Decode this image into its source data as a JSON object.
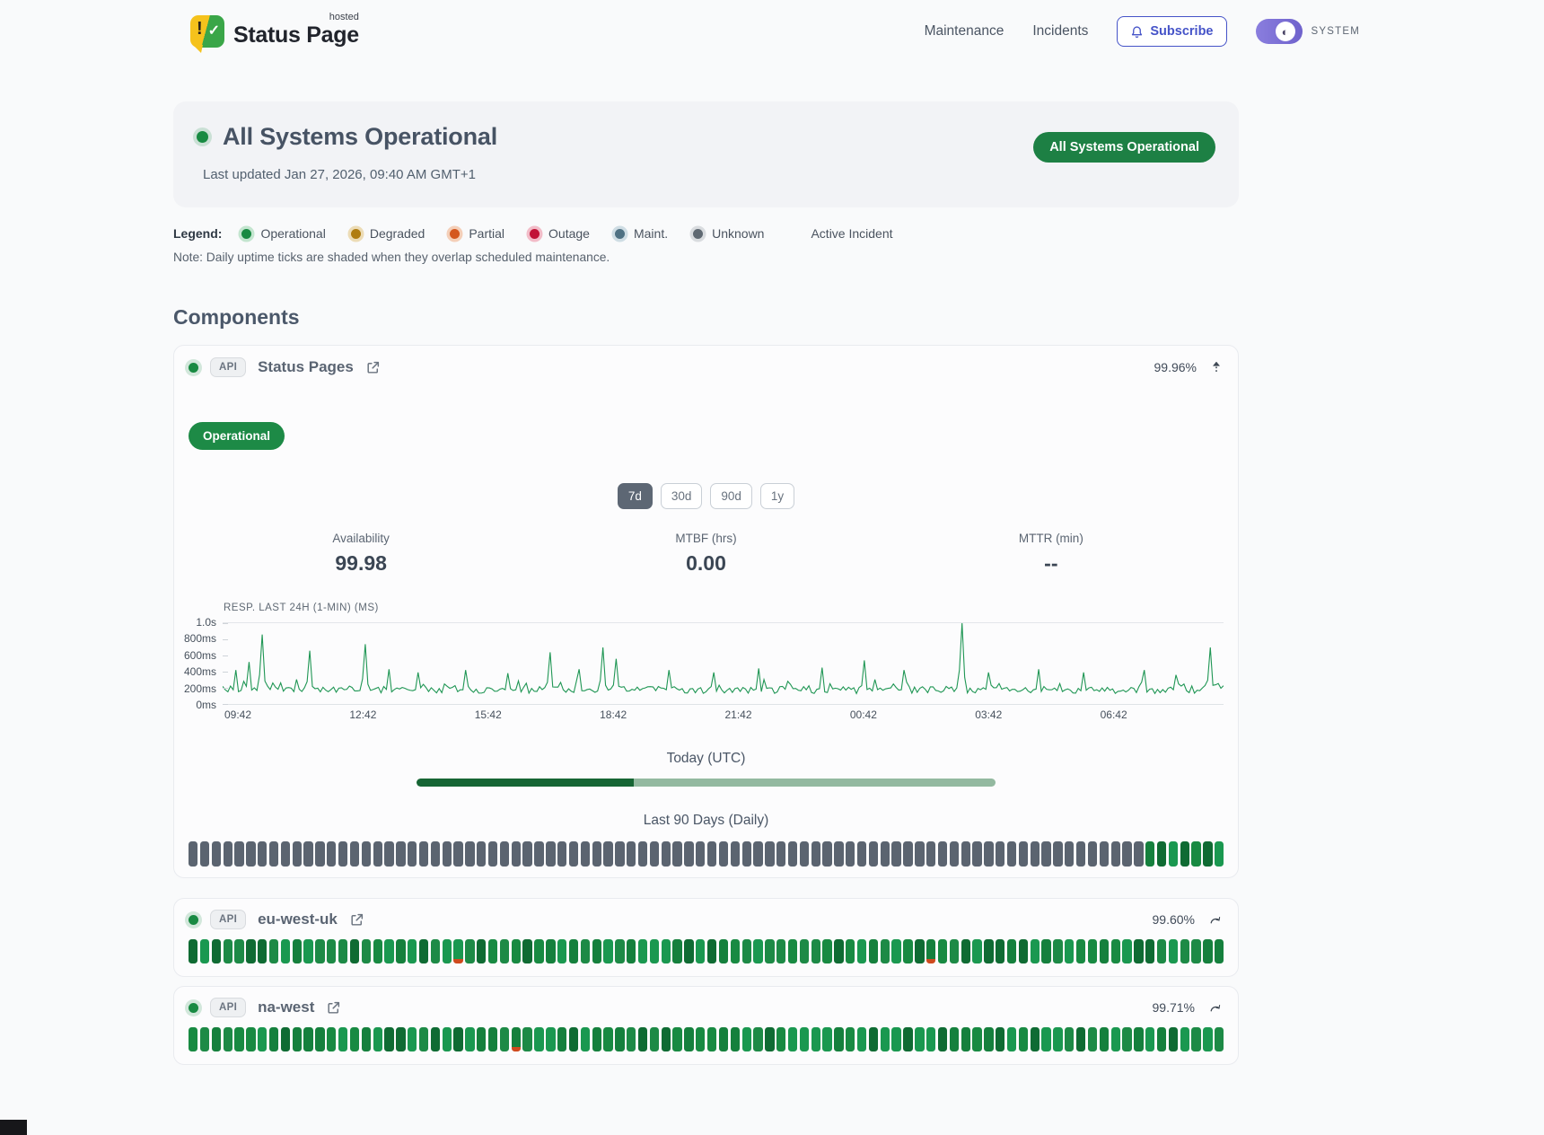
{
  "brand": {
    "title": "Status Page",
    "superscript": "hosted"
  },
  "nav": {
    "items": [
      "Maintenance",
      "Incidents"
    ],
    "subscribe_label": "Subscribe",
    "theme_label": "SYSTEM"
  },
  "hero": {
    "title": "All Systems Operational",
    "updated": "Last updated Jan 27, 2026, 09:40 AM GMT+1",
    "badge": "All Systems Operational"
  },
  "legend": {
    "label": "Legend:",
    "items": [
      {
        "label": "Operational",
        "color": "#188a42",
        "ring": "#c3e5cf"
      },
      {
        "label": "Degraded",
        "color": "#b07d10",
        "ring": "#ecdcb6"
      },
      {
        "label": "Partial",
        "color": "#d4571e",
        "ring": "#f4cfb8"
      },
      {
        "label": "Outage",
        "color": "#c11236",
        "ring": "#f2bcc8"
      },
      {
        "label": "Maint.",
        "color": "#4f7183",
        "ring": "#cfdde4"
      },
      {
        "label": "Unknown",
        "color": "#5f6972",
        "ring": "#d9dcdf"
      }
    ],
    "active_incident_label": "Active Incident",
    "note": "Note: Daily uptime ticks are shaded when they overlap scheduled maintenance."
  },
  "components_heading": "Components",
  "components": [
    {
      "badge": "API",
      "name": "Status Pages",
      "uptime": "99.96%",
      "status_label": "Operational",
      "ranges": [
        {
          "label": "7d",
          "active": true
        },
        {
          "label": "30d",
          "active": false
        },
        {
          "label": "90d",
          "active": false
        },
        {
          "label": "1y",
          "active": false
        }
      ],
      "stats": [
        {
          "label": "Availability",
          "value": "99.98"
        },
        {
          "label": "MTBF (hrs)",
          "value": "0.00"
        },
        {
          "label": "MTTR (min)",
          "value": "--"
        }
      ],
      "today_label": "Today (UTC)",
      "today_progress_pct": 37.6,
      "history_label": "Last 90 Days (Daily)",
      "history": {
        "days": 90,
        "runs": [
          [
            "unknown",
            83
          ],
          [
            "up",
            7
          ]
        ],
        "partials": []
      }
    },
    {
      "badge": "API",
      "name": "eu-west-uk",
      "uptime": "99.60%",
      "history": {
        "days": 90,
        "runs": [
          [
            "up",
            90
          ]
        ],
        "partials": [
          23,
          64
        ]
      }
    },
    {
      "badge": "API",
      "name": "na-west",
      "uptime": "99.71%",
      "history": {
        "days": 90,
        "runs": [
          [
            "up",
            90
          ]
        ],
        "partials": [
          28
        ]
      }
    }
  ],
  "chart_data": {
    "type": "line",
    "title": "RESP. LAST 24H (1-MIN) (MS)",
    "y_ticks": [
      "1.0s",
      "800ms",
      "600ms",
      "400ms",
      "200ms",
      "0ms"
    ],
    "x_ticks": [
      "09:42",
      "12:42",
      "15:42",
      "18:42",
      "21:42",
      "00:42",
      "03:42",
      "06:42"
    ],
    "ylim": [
      0,
      1000
    ],
    "grid": "top-and-bottom-only",
    "legend_position": "none",
    "baseline_ms": 170,
    "noise_ms": 90,
    "seed": 7,
    "points": 380,
    "spikes": [
      {
        "x": 0.012,
        "y": 420
      },
      {
        "x": 0.026,
        "y": 520
      },
      {
        "x": 0.04,
        "y": 860
      },
      {
        "x": 0.088,
        "y": 660
      },
      {
        "x": 0.142,
        "y": 740
      },
      {
        "x": 0.165,
        "y": 430
      },
      {
        "x": 0.196,
        "y": 390
      },
      {
        "x": 0.243,
        "y": 420
      },
      {
        "x": 0.286,
        "y": 380
      },
      {
        "x": 0.326,
        "y": 640
      },
      {
        "x": 0.356,
        "y": 430
      },
      {
        "x": 0.38,
        "y": 700
      },
      {
        "x": 0.392,
        "y": 560
      },
      {
        "x": 0.446,
        "y": 420
      },
      {
        "x": 0.492,
        "y": 390
      },
      {
        "x": 0.536,
        "y": 440
      },
      {
        "x": 0.6,
        "y": 450
      },
      {
        "x": 0.64,
        "y": 540
      },
      {
        "x": 0.682,
        "y": 420
      },
      {
        "x": 0.738,
        "y": 1000
      },
      {
        "x": 0.764,
        "y": 390
      },
      {
        "x": 0.816,
        "y": 430
      },
      {
        "x": 0.86,
        "y": 390
      },
      {
        "x": 0.92,
        "y": 420
      },
      {
        "x": 0.952,
        "y": 360
      },
      {
        "x": 0.988,
        "y": 700
      }
    ]
  },
  "colors": {
    "subscribe_indigo": "#4553c8",
    "toggle_purple": "#7b6fd4",
    "chart_line": "#1f9654",
    "progress_dark": "#166534",
    "progress_light": "#93b9a0",
    "tick_unknown": "#5b6470",
    "tick_partial": "#cf4a1e",
    "tick_up_palette": [
      "#15803d",
      "#188a42",
      "#1a9850",
      "#0f6b33",
      "#1d8a46"
    ]
  }
}
